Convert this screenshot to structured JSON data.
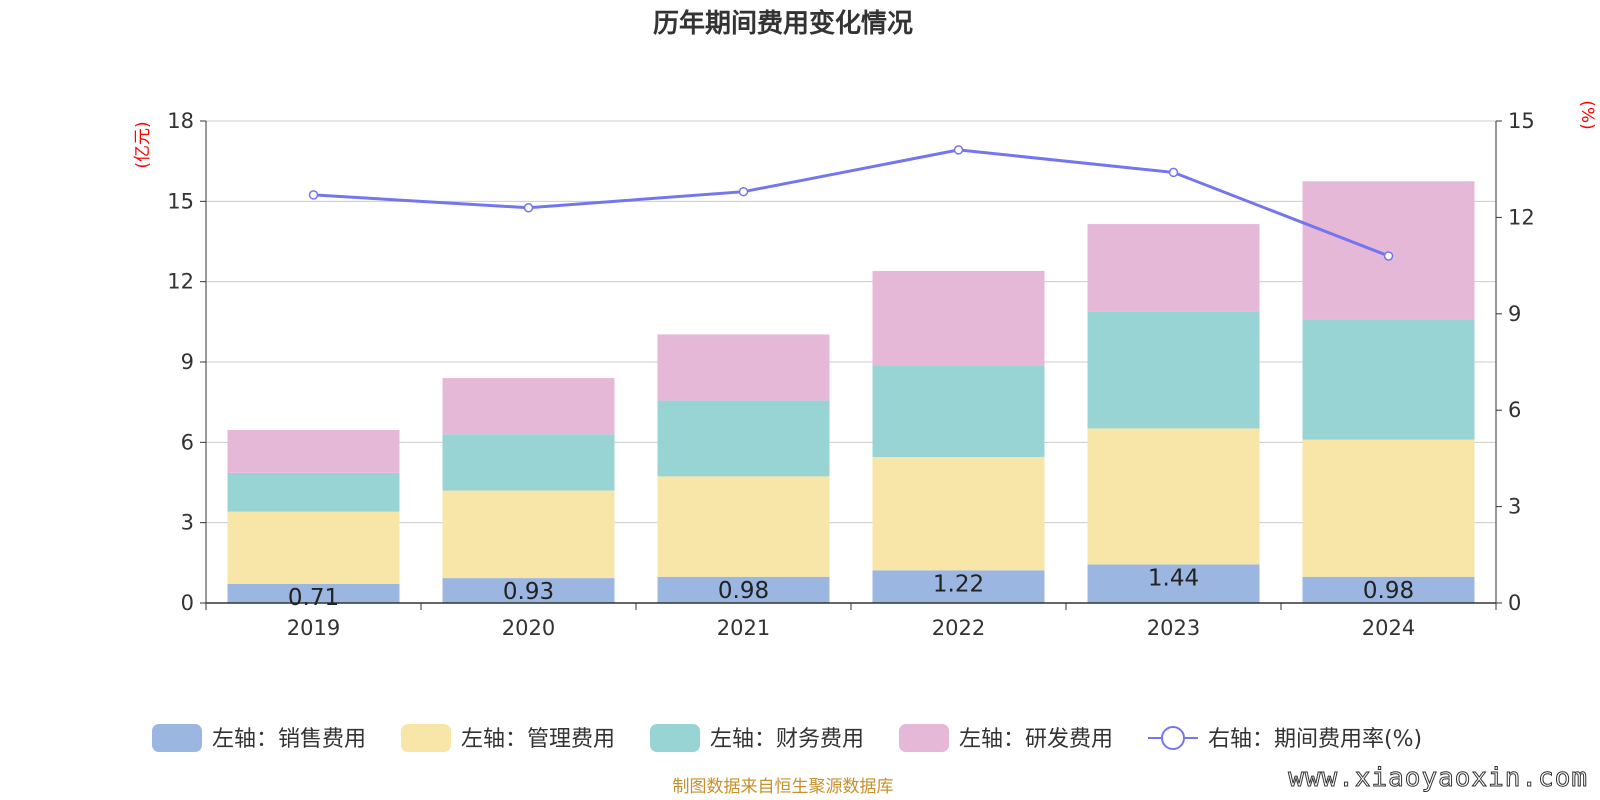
{
  "title": "历年期间费用变化情况",
  "source": "制图数据来自恒生聚源数据库",
  "watermark": "www.xiaoyaoxin.com",
  "units": {
    "left": "(亿元)",
    "right": "(%)"
  },
  "colors": {
    "sales": "#9bb6e1",
    "admin": "#f7e6a8",
    "finance": "#98d4d4",
    "rd": "#e6b8d8",
    "rate": "#7476ee",
    "grid": "#cccccc",
    "axis": "#333333"
  },
  "chart_data": {
    "type": "bar",
    "stacked": true,
    "categories": [
      "2019",
      "2020",
      "2021",
      "2022",
      "2023",
      "2024"
    ],
    "ylim": [
      0,
      18
    ],
    "y_ticks": [
      "0",
      "3",
      "6",
      "9",
      "12",
      "15",
      "18"
    ],
    "y2lim": [
      0,
      15
    ],
    "y2_ticks": [
      "0",
      "3",
      "6",
      "9",
      "12",
      "15"
    ],
    "series": [
      {
        "key": "sales",
        "name": "左轴：销售费用",
        "values": [
          0.71,
          0.93,
          0.98,
          1.22,
          1.44,
          0.98
        ],
        "data_labels": [
          "0.71",
          "0.93",
          "0.98",
          "1.22",
          "1.44",
          "0.98"
        ]
      },
      {
        "key": "admin",
        "name": "左轴：管理费用",
        "values": [
          2.7,
          3.27,
          3.75,
          4.23,
          5.08,
          5.12
        ]
      },
      {
        "key": "finance",
        "name": "左轴：财务费用",
        "values": [
          1.45,
          2.1,
          2.83,
          3.4,
          4.35,
          4.5
        ]
      },
      {
        "key": "rd",
        "name": "左轴：研发费用",
        "values": [
          1.6,
          2.1,
          2.47,
          3.55,
          3.28,
          5.15
        ]
      }
    ],
    "line": {
      "key": "rate",
      "name": "右轴：期间费用率(%)",
      "axis": "right",
      "values": [
        12.7,
        12.3,
        12.8,
        14.1,
        13.4,
        10.8
      ]
    },
    "grid": true,
    "legend_position": "bottom"
  }
}
